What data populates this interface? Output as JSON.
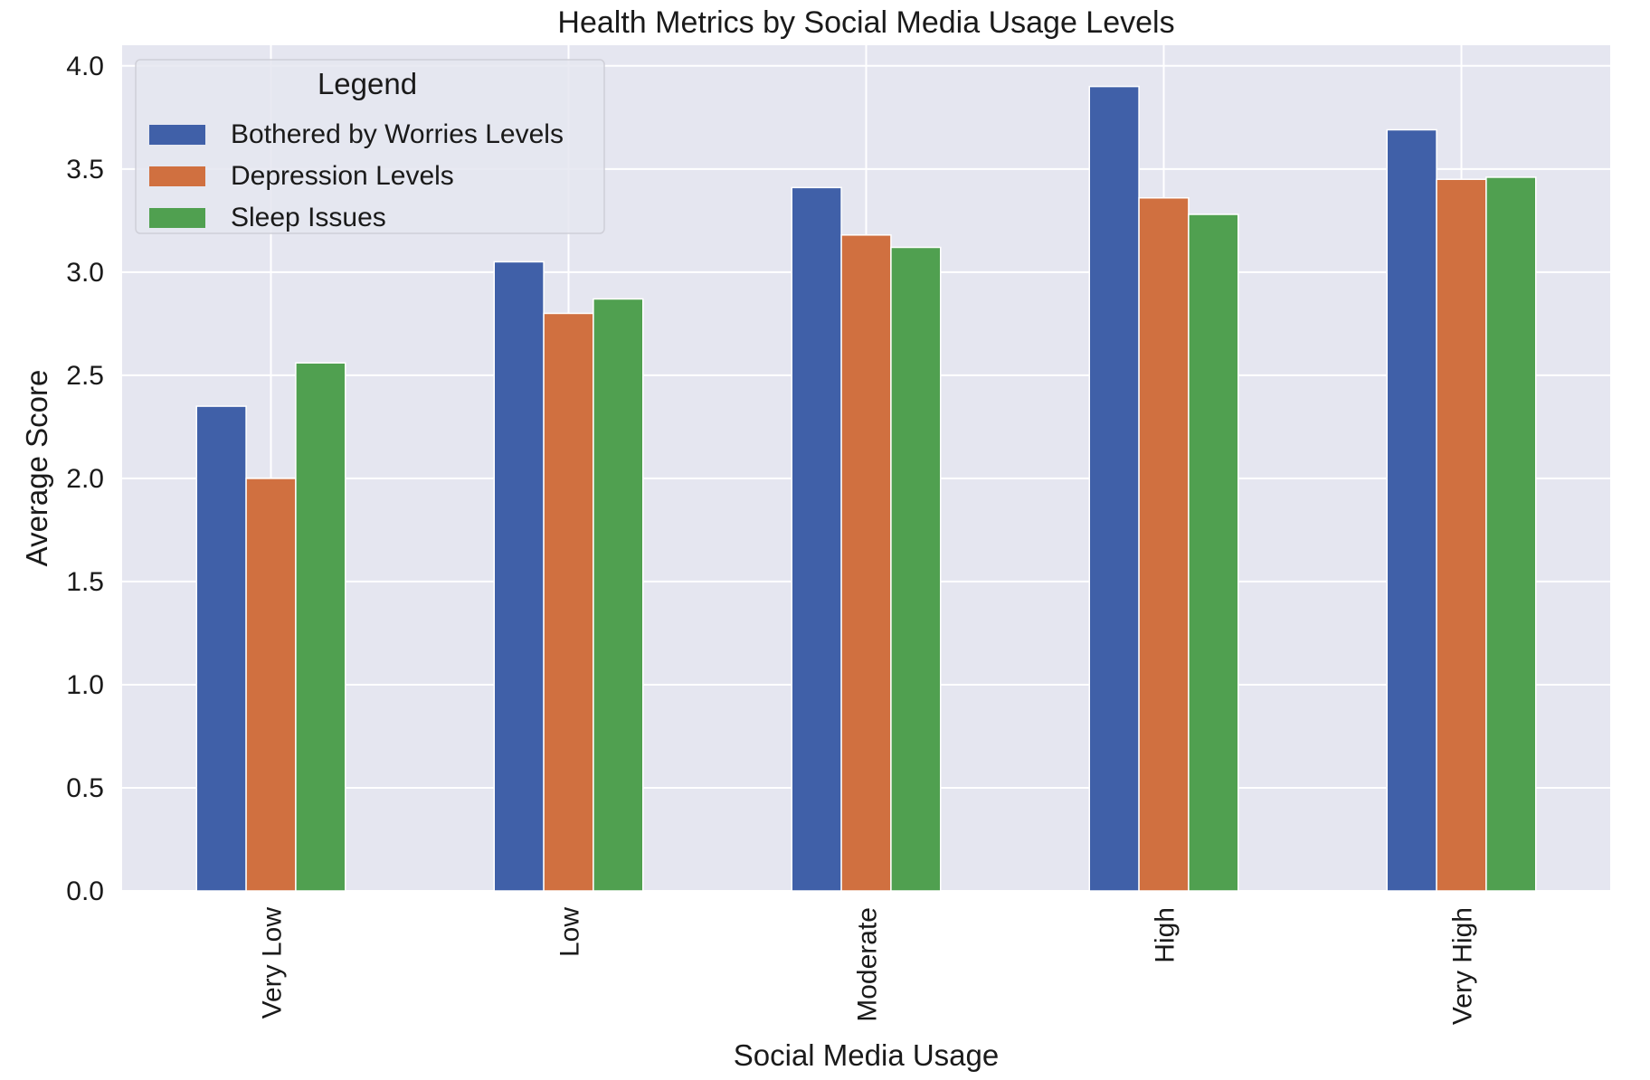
{
  "chart_data": {
    "type": "bar",
    "title": "Health Metrics by Social Media Usage Levels",
    "xlabel": "Social Media Usage",
    "ylabel": "Average Score",
    "categories": [
      "Very Low",
      "Low",
      "Moderate",
      "High",
      "Very High"
    ],
    "series": [
      {
        "name": "Bothered by Worries Levels",
        "color": "#4060a8",
        "values": [
          2.35,
          3.05,
          3.41,
          3.9,
          3.69
        ]
      },
      {
        "name": "Depression Levels",
        "color": "#d07040",
        "values": [
          2.0,
          2.8,
          3.18,
          3.36,
          3.45
        ]
      },
      {
        "name": "Sleep Issues",
        "color": "#50a050",
        "values": [
          2.56,
          2.87,
          3.12,
          3.28,
          3.46
        ]
      }
    ],
    "ylim": [
      0,
      4.1
    ],
    "yticks": [
      "0.0",
      "0.5",
      "1.0",
      "1.5",
      "2.0",
      "2.5",
      "3.0",
      "3.5",
      "4.0"
    ],
    "grid": true,
    "legend": {
      "title": "Legend",
      "placement": "top-left"
    },
    "colors": {
      "plot_background": "#e5e6f0",
      "grid": "#ffffff"
    }
  }
}
